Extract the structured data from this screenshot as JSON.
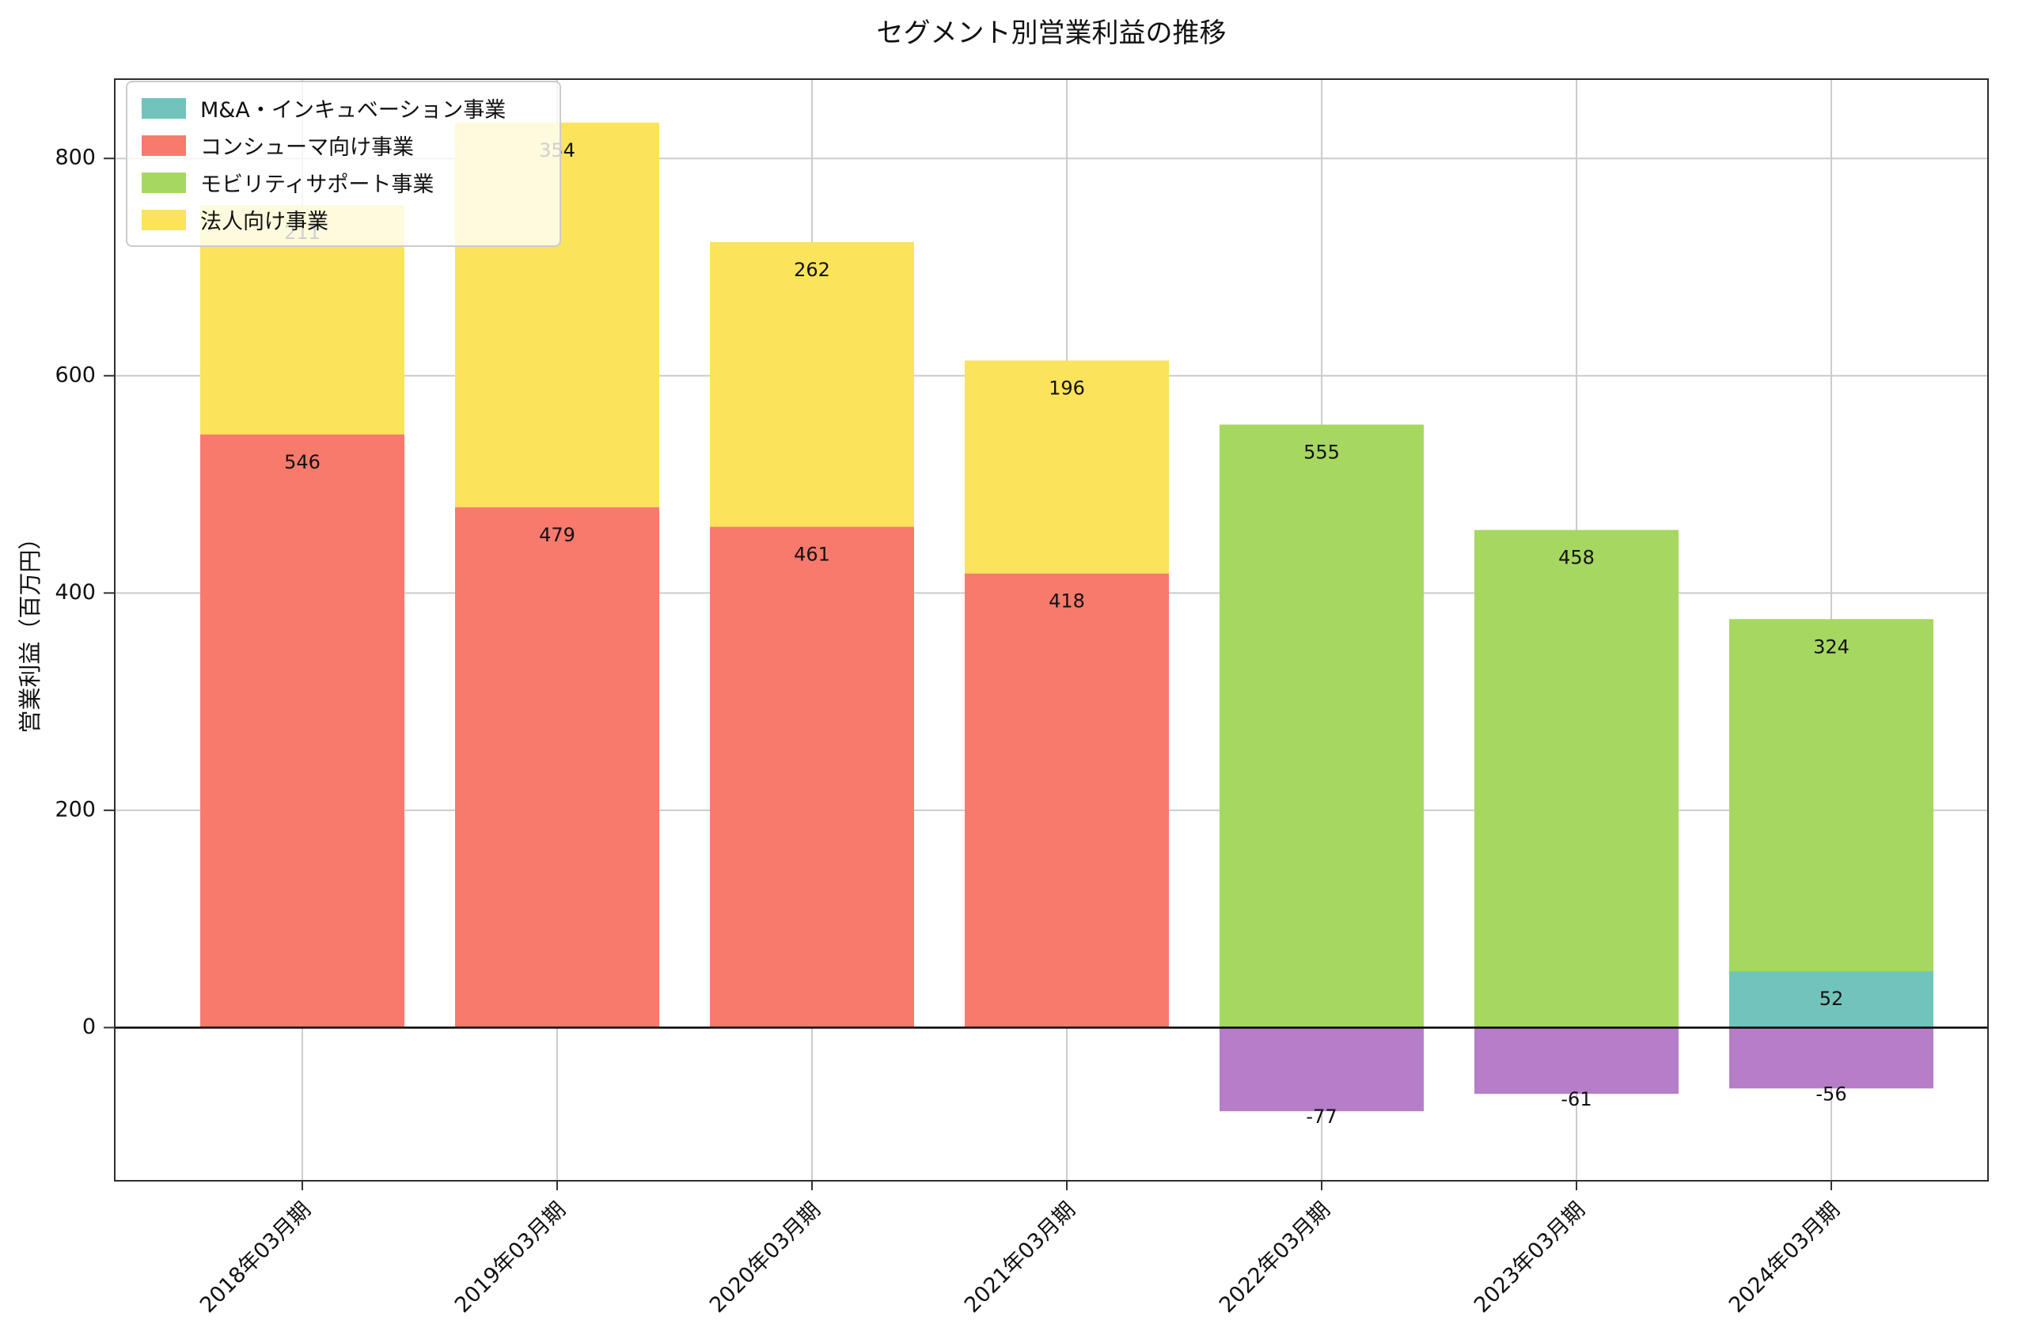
{
  "chart_data": {
    "type": "bar",
    "stacked": true,
    "title": "セグメント別営業利益の推移",
    "ylabel": "営業利益（百万円）",
    "categories": [
      "2018年03月期",
      "2019年03月期",
      "2020年03月期",
      "2021年03月期",
      "2022年03月期",
      "2023年03月期",
      "2024年03月期"
    ],
    "series": [
      {
        "name": "M&A・インキュベーション事業",
        "color": "#70c4bc",
        "show_in_legend": true,
        "values": [
          0,
          0,
          0,
          0,
          0,
          0,
          52
        ]
      },
      {
        "name": "コンシューマ向け事業",
        "color": "#f87a6d",
        "show_in_legend": true,
        "values": [
          546,
          479,
          461,
          418,
          0,
          0,
          0
        ]
      },
      {
        "name": "モビリティサポート事業",
        "color": "#a6d761",
        "show_in_legend": true,
        "values": [
          0,
          0,
          0,
          0,
          555,
          458,
          324
        ]
      },
      {
        "name": "法人向け事業",
        "color": "#fbe35c",
        "show_in_legend": true,
        "values": [
          211,
          354,
          262,
          196,
          0,
          0,
          0
        ]
      },
      {
        "name": "",
        "color": "#b67dc8",
        "show_in_legend": false,
        "values": [
          0,
          0,
          0,
          0,
          -77,
          -61,
          -56
        ]
      }
    ],
    "bar_value_labels": [
      {
        "category_index": 0,
        "value": 546
      },
      {
        "category_index": 1,
        "value": 479
      },
      {
        "category_index": 1,
        "value": 354
      },
      {
        "category_index": 2,
        "value": 461
      },
      {
        "category_index": 2,
        "value": 262
      },
      {
        "category_index": 3,
        "value": 418
      },
      {
        "category_index": 3,
        "value": 196
      },
      {
        "category_index": 4,
        "value": 555
      },
      {
        "category_index": 4,
        "value": -77
      },
      {
        "category_index": 5,
        "value": 458
      },
      {
        "category_index": 5,
        "value": -61
      },
      {
        "category_index": 6,
        "value": 324
      },
      {
        "category_index": 6,
        "value": 52
      },
      {
        "category_index": 6,
        "value": -56
      }
    ],
    "yticks": [
      0,
      200,
      400,
      600,
      800
    ],
    "ylim": [
      -141,
      873
    ],
    "grid": true,
    "zero_line": true,
    "legend_position": "upper-left",
    "colors": {
      "grid": "#cccccc",
      "frame": "#2e2e2e",
      "zero_line": "#000000",
      "text": "#111111",
      "background": "#ffffff"
    }
  }
}
